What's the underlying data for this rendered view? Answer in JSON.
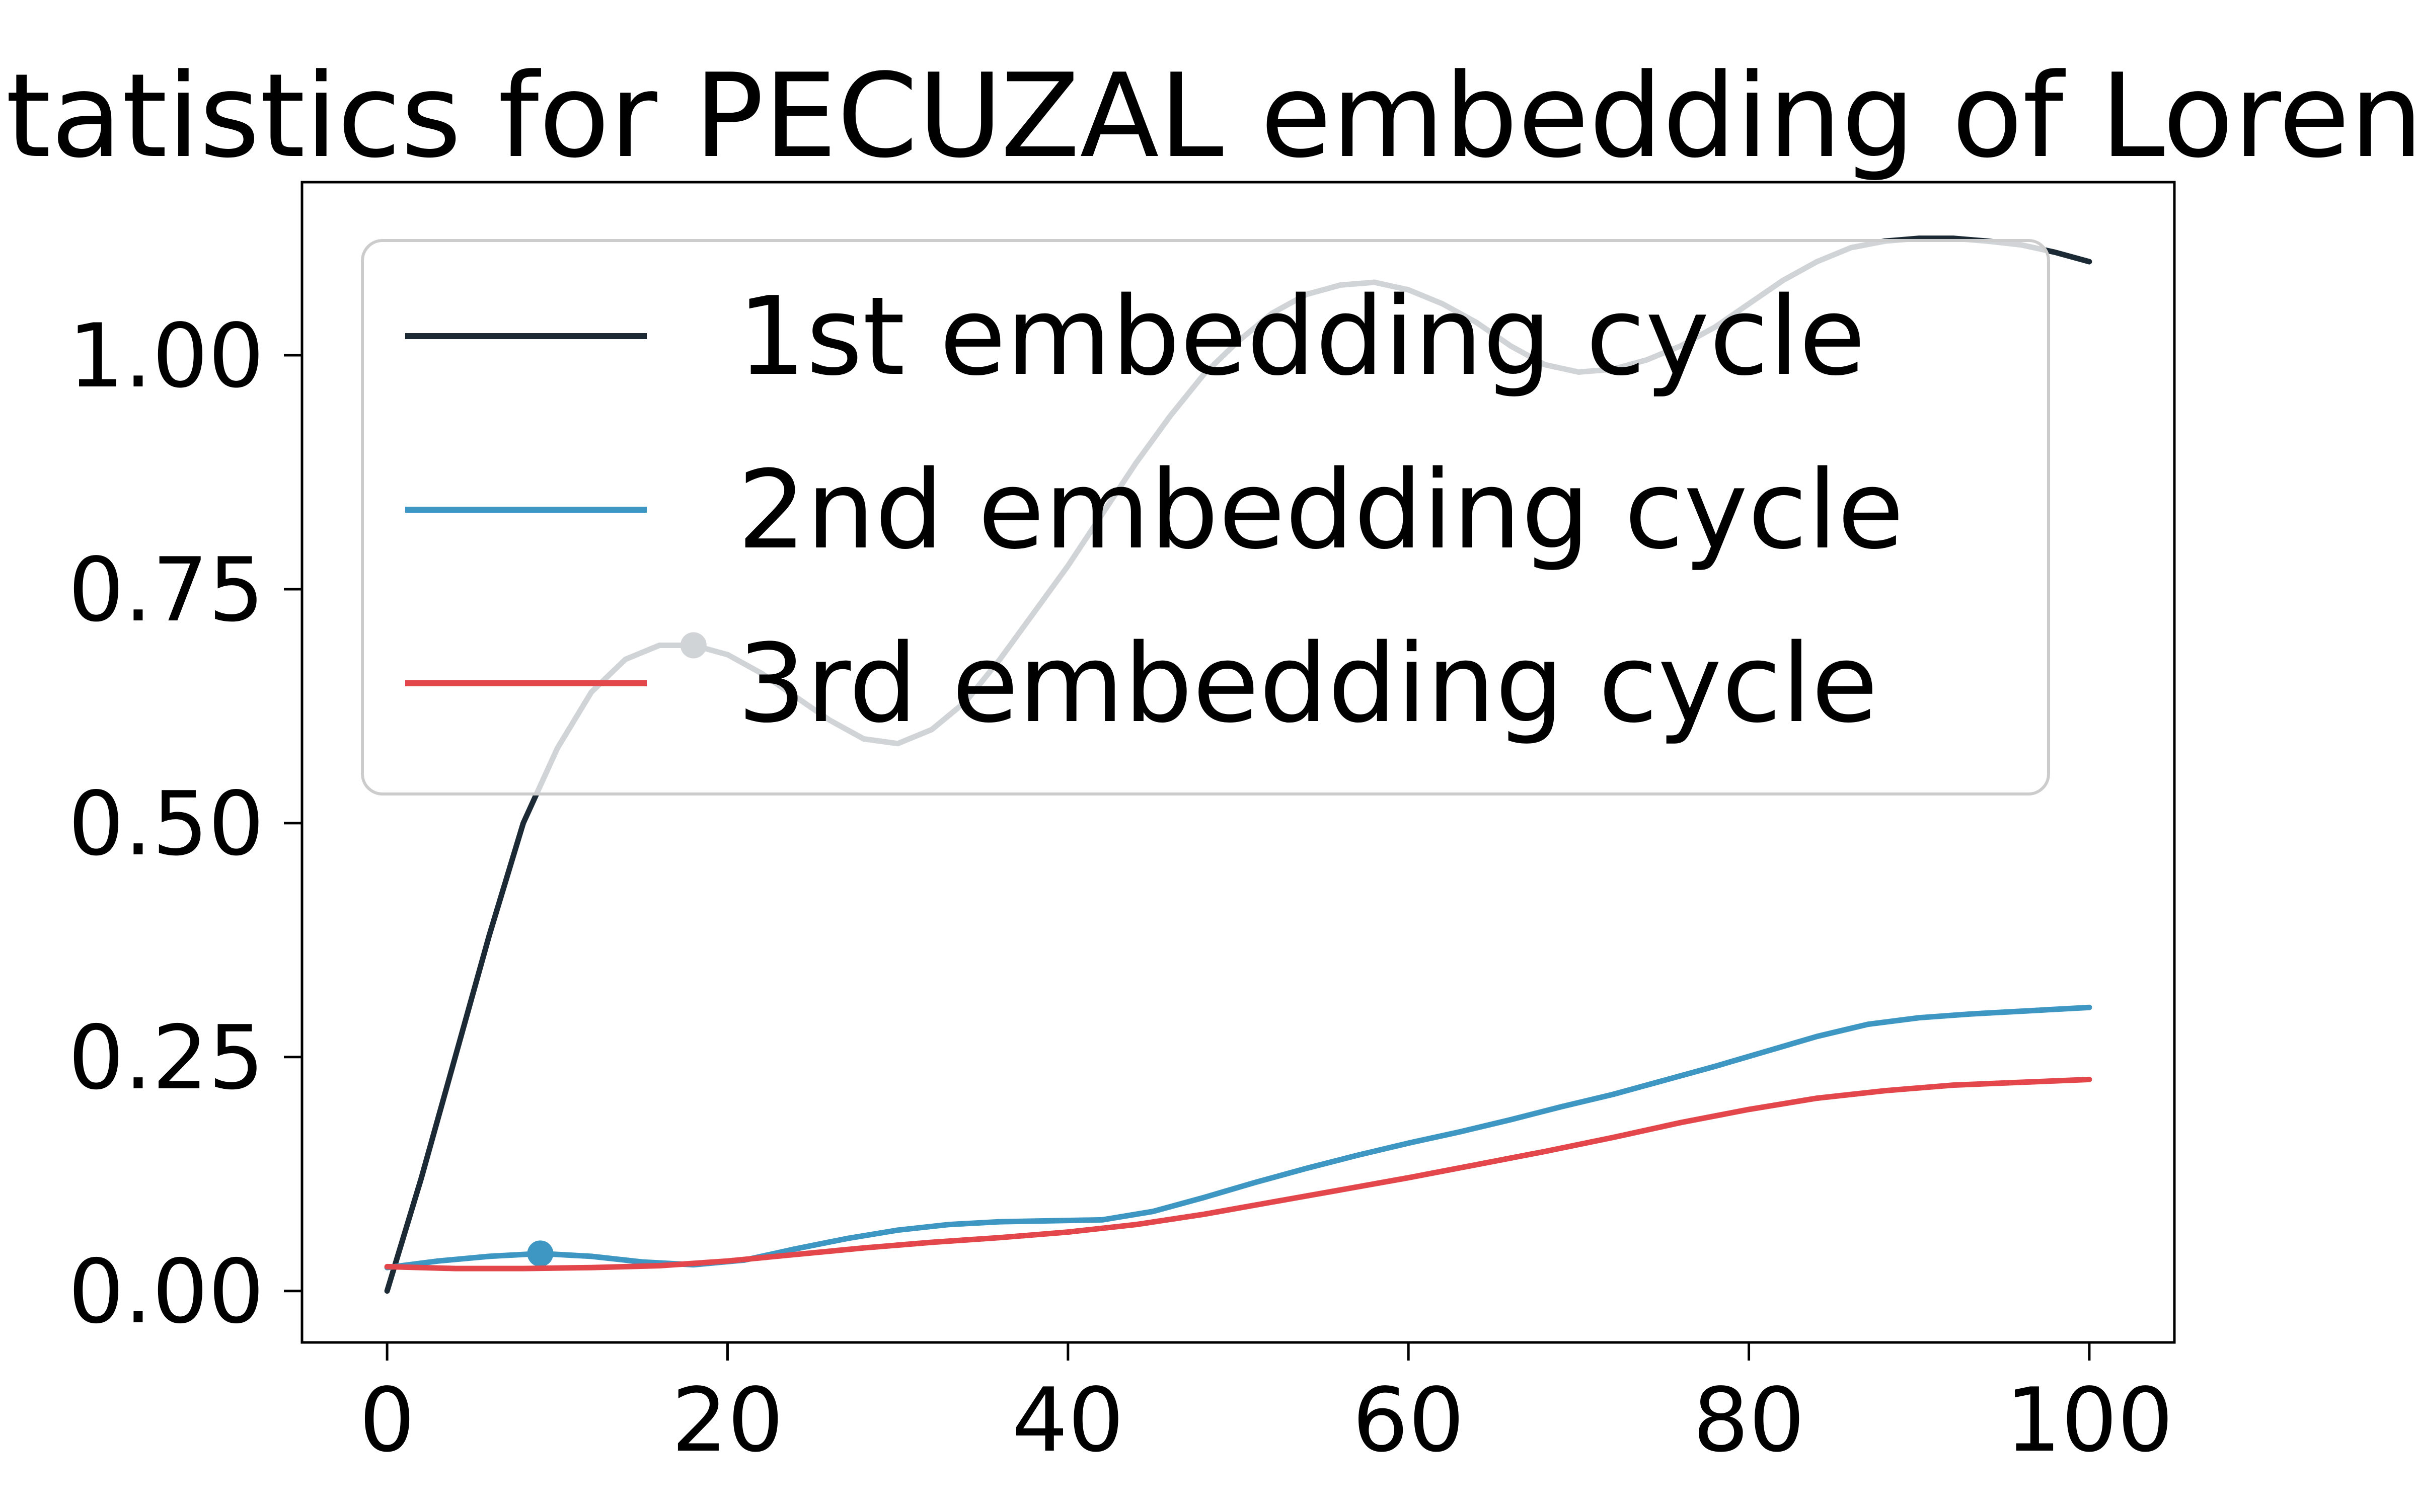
{
  "chart_data": {
    "type": "line",
    "title": "Statistics for PECUZAL embedding of Lorenz",
    "xlabel": "",
    "ylabel": "",
    "xlim": [
      -5,
      105
    ],
    "ylim": [
      -0.055,
      1.185
    ],
    "xticks": [
      0,
      20,
      40,
      60,
      80,
      100
    ],
    "xtick_labels": [
      "0",
      "20",
      "40",
      "60",
      "80",
      "100"
    ],
    "yticks": [
      0,
      0.25,
      0.5,
      0.75,
      1.0
    ],
    "ytick_labels": [
      "0.00",
      "0.25",
      "0.50",
      "0.75",
      "1.00"
    ],
    "grid": false,
    "legend_position": "upper-left",
    "series": [
      {
        "name": "1st embedding cycle",
        "color": "#1b2a35",
        "x": [
          0,
          2,
          4,
          6,
          8,
          10,
          12,
          14,
          16,
          18,
          20,
          22,
          24,
          26,
          28,
          30,
          32,
          34,
          36,
          38,
          40,
          42,
          44,
          46,
          48,
          50,
          52,
          54,
          56,
          58,
          60,
          62,
          64,
          66,
          68,
          70,
          72,
          74,
          76,
          78,
          80,
          82,
          84,
          86,
          88,
          90,
          92,
          94,
          96,
          98,
          100
        ],
        "y": [
          0.0,
          0.12,
          0.25,
          0.38,
          0.5,
          0.58,
          0.64,
          0.675,
          0.69,
          0.69,
          0.68,
          0.66,
          0.635,
          0.61,
          0.59,
          0.585,
          0.6,
          0.63,
          0.675,
          0.725,
          0.775,
          0.83,
          0.885,
          0.935,
          0.98,
          1.015,
          1.045,
          1.065,
          1.075,
          1.078,
          1.07,
          1.055,
          1.035,
          1.01,
          0.99,
          0.982,
          0.985,
          0.995,
          1.01,
          1.03,
          1.055,
          1.08,
          1.1,
          1.115,
          1.122,
          1.125,
          1.125,
          1.122,
          1.118,
          1.11,
          1.1
        ],
        "minimum": {
          "x": 18,
          "y": 0.69
        }
      },
      {
        "name": "2nd embedding cycle",
        "color": "#3d97c2",
        "x": [
          0,
          3,
          6,
          9,
          12,
          15,
          18,
          21,
          24,
          27,
          30,
          33,
          36,
          39,
          42,
          45,
          48,
          51,
          54,
          57,
          60,
          63,
          66,
          69,
          72,
          75,
          78,
          81,
          84,
          87,
          90,
          93,
          96,
          100
        ],
        "y": [
          0.025,
          0.032,
          0.037,
          0.04,
          0.037,
          0.031,
          0.028,
          0.033,
          0.045,
          0.056,
          0.065,
          0.071,
          0.074,
          0.075,
          0.076,
          0.085,
          0.1,
          0.116,
          0.131,
          0.145,
          0.158,
          0.17,
          0.183,
          0.197,
          0.21,
          0.225,
          0.24,
          0.256,
          0.272,
          0.285,
          0.292,
          0.296,
          0.299,
          0.303
        ],
        "minimum": {
          "x": 9,
          "y": 0.04
        }
      },
      {
        "name": "3rd embedding cycle",
        "color": "#e3474b",
        "x": [
          0,
          4,
          8,
          12,
          16,
          20,
          24,
          28,
          32,
          36,
          40,
          44,
          48,
          52,
          56,
          60,
          64,
          68,
          72,
          76,
          80,
          84,
          88,
          92,
          96,
          100
        ],
        "y": [
          0.026,
          0.024,
          0.024,
          0.025,
          0.027,
          0.032,
          0.039,
          0.046,
          0.052,
          0.057,
          0.063,
          0.071,
          0.082,
          0.095,
          0.108,
          0.121,
          0.135,
          0.149,
          0.164,
          0.18,
          0.194,
          0.206,
          0.214,
          0.22,
          0.223,
          0.226
        ]
      }
    ]
  }
}
